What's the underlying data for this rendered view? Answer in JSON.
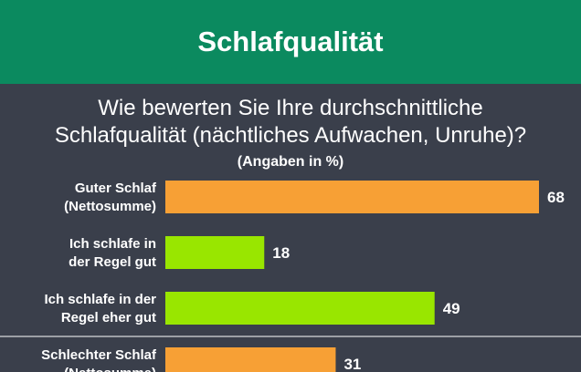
{
  "header": {
    "title": "Schlafqualität"
  },
  "question": {
    "line1": "Wie bewerten Sie Ihre durchschnittliche",
    "line2": "Schlafqualität (nächtliches Aufwachen, Unruhe)?"
  },
  "unit_note": "(Angaben in %)",
  "colors": {
    "header": "#0b8a5f",
    "background": "#3a3f4b",
    "net": "#f7a035",
    "detail": "#99e600"
  },
  "chart_data": {
    "type": "bar",
    "orientation": "horizontal",
    "title": "Wie bewerten Sie Ihre durchschnittliche Schlafqualität (nächtliches Aufwachen, Unruhe)?",
    "unit": "(Angaben in %)",
    "categories": [
      {
        "lines": [
          "Guter Schlaf",
          "(Nettosumme)"
        ],
        "value": 68,
        "kind": "net"
      },
      {
        "lines": [
          "Ich schlafe in",
          "der Regel gut"
        ],
        "value": 18,
        "kind": "detail"
      },
      {
        "lines": [
          "Ich schlafe in der",
          "Regel eher gut"
        ],
        "value": 49,
        "kind": "detail"
      },
      {
        "lines": [
          "Schlechter Schlaf",
          "(Nettosumme)"
        ],
        "value": 31,
        "kind": "net"
      }
    ],
    "values": [
      68,
      18,
      49,
      31
    ],
    "xlim": [
      0,
      68
    ],
    "grid": false,
    "legend": "none"
  }
}
